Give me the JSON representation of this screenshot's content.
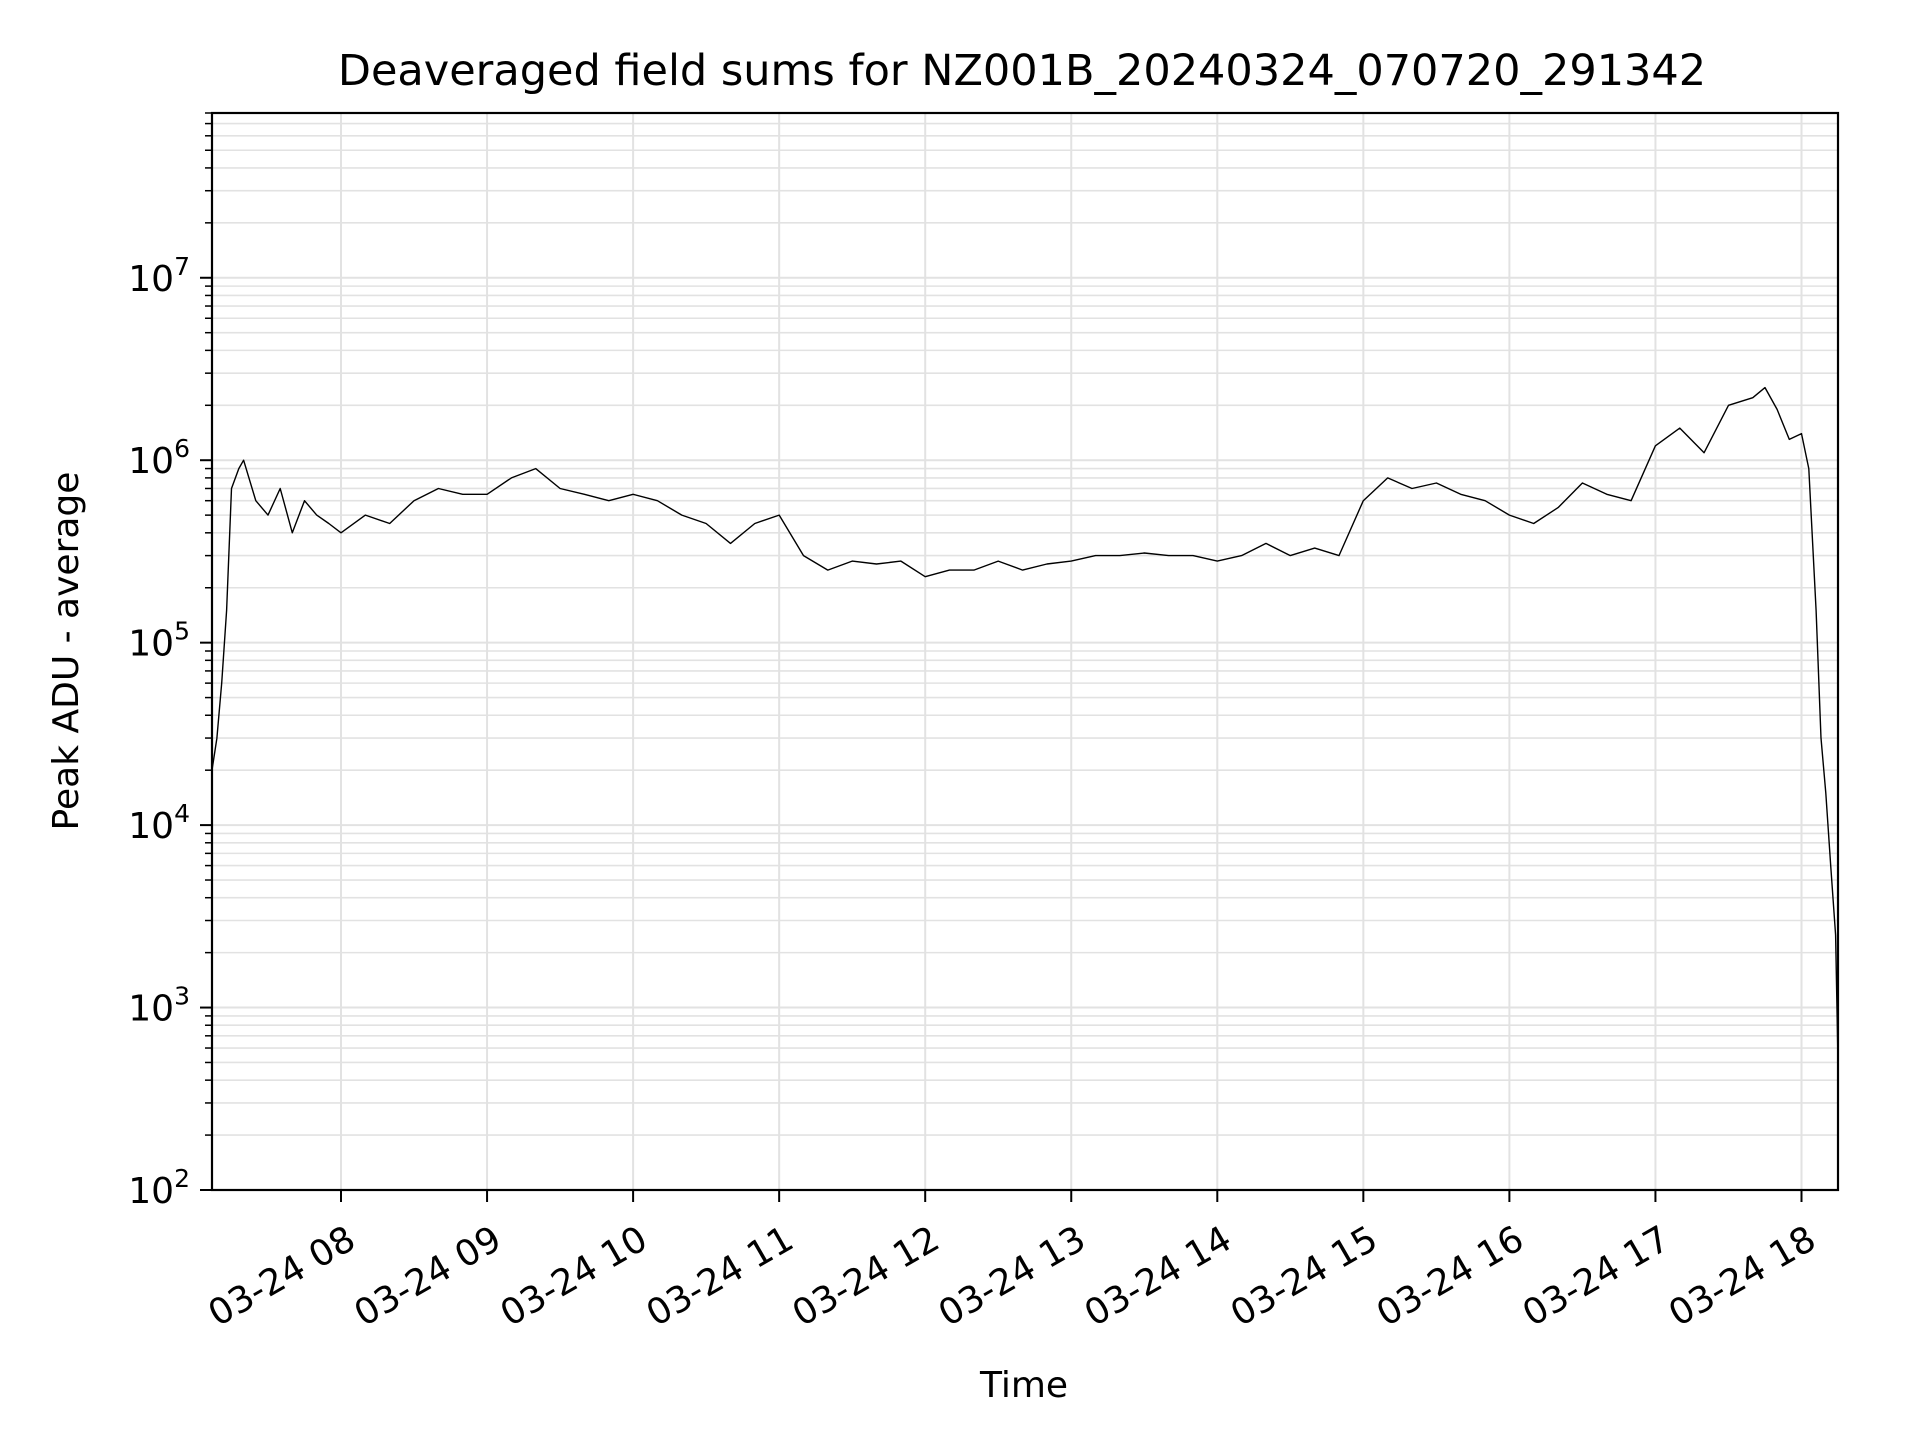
{
  "chart_data": {
    "type": "line",
    "title": "Deaveraged field sums for NZ001B_20240324_070720_291342",
    "xlabel": "Time",
    "ylabel": "Peak ADU - average",
    "yscale": "log",
    "ylim": [
      100,
      80000000
    ],
    "xlim": [
      "2024-03-24 07:07",
      "2024-03-24 18:15"
    ],
    "grid": true,
    "line_color": "#000000",
    "x_ticks": [
      {
        "t": "2024-03-24 08:00",
        "label": "03-24 08"
      },
      {
        "t": "2024-03-24 09:00",
        "label": "03-24 09"
      },
      {
        "t": "2024-03-24 10:00",
        "label": "03-24 10"
      },
      {
        "t": "2024-03-24 11:00",
        "label": "03-24 11"
      },
      {
        "t": "2024-03-24 12:00",
        "label": "03-24 12"
      },
      {
        "t": "2024-03-24 13:00",
        "label": "03-24 13"
      },
      {
        "t": "2024-03-24 14:00",
        "label": "03-24 14"
      },
      {
        "t": "2024-03-24 15:00",
        "label": "03-24 15"
      },
      {
        "t": "2024-03-24 16:00",
        "label": "03-24 16"
      },
      {
        "t": "2024-03-24 17:00",
        "label": "03-24 17"
      },
      {
        "t": "2024-03-24 18:00",
        "label": "03-24 18"
      }
    ],
    "y_ticks": [
      {
        "value": 100,
        "base": "10",
        "exp": "2"
      },
      {
        "value": 1000,
        "base": "10",
        "exp": "3"
      },
      {
        "value": 10000,
        "base": "10",
        "exp": "4"
      },
      {
        "value": 100000,
        "base": "10",
        "exp": "5"
      },
      {
        "value": 1000000,
        "base": "10",
        "exp": "6"
      },
      {
        "value": 10000000,
        "base": "10",
        "exp": "7"
      }
    ],
    "series": [
      {
        "x": [
          "2024-03-24 07:07",
          "2024-03-24 07:09",
          "2024-03-24 07:11",
          "2024-03-24 07:13",
          "2024-03-24 07:15",
          "2024-03-24 07:18",
          "2024-03-24 07:20",
          "2024-03-24 07:25",
          "2024-03-24 07:30",
          "2024-03-24 07:35",
          "2024-03-24 07:40",
          "2024-03-24 07:45",
          "2024-03-24 07:50",
          "2024-03-24 07:55",
          "2024-03-24 08:00",
          "2024-03-24 08:10",
          "2024-03-24 08:20",
          "2024-03-24 08:30",
          "2024-03-24 08:40",
          "2024-03-24 08:50",
          "2024-03-24 09:00",
          "2024-03-24 09:10",
          "2024-03-24 09:20",
          "2024-03-24 09:30",
          "2024-03-24 09:40",
          "2024-03-24 09:50",
          "2024-03-24 10:00",
          "2024-03-24 10:10",
          "2024-03-24 10:20",
          "2024-03-24 10:30",
          "2024-03-24 10:40",
          "2024-03-24 10:50",
          "2024-03-24 11:00",
          "2024-03-24 11:10",
          "2024-03-24 11:20",
          "2024-03-24 11:30",
          "2024-03-24 11:40",
          "2024-03-24 11:50",
          "2024-03-24 12:00",
          "2024-03-24 12:10",
          "2024-03-24 12:20",
          "2024-03-24 12:30",
          "2024-03-24 12:40",
          "2024-03-24 12:50",
          "2024-03-24 13:00",
          "2024-03-24 13:10",
          "2024-03-24 13:20",
          "2024-03-24 13:30",
          "2024-03-24 13:40",
          "2024-03-24 13:50",
          "2024-03-24 14:00",
          "2024-03-24 14:10",
          "2024-03-24 14:20",
          "2024-03-24 14:30",
          "2024-03-24 14:40",
          "2024-03-24 14:50",
          "2024-03-24 15:00",
          "2024-03-24 15:10",
          "2024-03-24 15:20",
          "2024-03-24 15:30",
          "2024-03-24 15:40",
          "2024-03-24 15:50",
          "2024-03-24 16:00",
          "2024-03-24 16:10",
          "2024-03-24 16:20",
          "2024-03-24 16:30",
          "2024-03-24 16:40",
          "2024-03-24 16:50",
          "2024-03-24 17:00",
          "2024-03-24 17:10",
          "2024-03-24 17:20",
          "2024-03-24 17:30",
          "2024-03-24 17:40",
          "2024-03-24 17:45",
          "2024-03-24 17:50",
          "2024-03-24 17:55",
          "2024-03-24 18:00",
          "2024-03-24 18:03",
          "2024-03-24 18:06",
          "2024-03-24 18:08",
          "2024-03-24 18:10",
          "2024-03-24 18:12",
          "2024-03-24 18:14",
          "2024-03-24 18:15"
        ],
        "values": [
          20000,
          30000,
          60000,
          150000,
          700000,
          900000,
          1000000,
          600000,
          500000,
          700000,
          400000,
          600000,
          500000,
          450000,
          400000,
          500000,
          450000,
          600000,
          700000,
          650000,
          650000,
          800000,
          900000,
          700000,
          650000,
          600000,
          650000,
          600000,
          500000,
          450000,
          350000,
          450000,
          500000,
          300000,
          250000,
          280000,
          270000,
          280000,
          230000,
          250000,
          250000,
          280000,
          250000,
          270000,
          280000,
          300000,
          300000,
          310000,
          300000,
          300000,
          280000,
          300000,
          350000,
          300000,
          330000,
          300000,
          600000,
          800000,
          700000,
          750000,
          650000,
          600000,
          500000,
          450000,
          550000,
          750000,
          650000,
          600000,
          1200000,
          1500000,
          1100000,
          2000000,
          2200000,
          2500000,
          1900000,
          1300000,
          1400000,
          900000,
          150000,
          30000,
          15000,
          6000,
          2500,
          500
        ]
      }
    ]
  }
}
